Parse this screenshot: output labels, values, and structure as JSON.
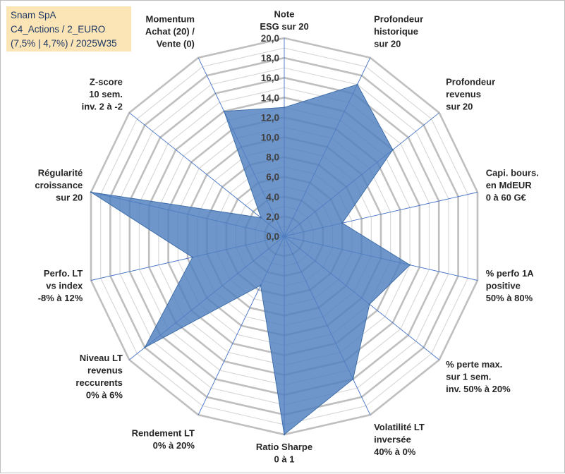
{
  "title_lines": [
    "Snam SpA",
    "C4_Actions / 2_EURO",
    "(7,5% | 4,7%) / 2025W35"
  ],
  "chart_data": {
    "type": "radar",
    "axes": [
      {
        "label": [
          "Note",
          "ESG sur 20"
        ],
        "value": 13.0
      },
      {
        "label": [
          "Profondeur",
          "historique",
          "sur 20"
        ],
        "value": 17.0
      },
      {
        "label": [
          "Profondeur",
          "revenus",
          "sur 20"
        ],
        "value": 14.0
      },
      {
        "label": [
          "Capi. bours.",
          "en MdEUR",
          "0 à 60 G€"
        ],
        "value": 6.0
      },
      {
        "label": [
          "% perfo 1A",
          "positive",
          "50% à 80%"
        ],
        "value": 13.0
      },
      {
        "label": [
          "% perte max.",
          "sur 1 sem.",
          "inv. 50% à 20%"
        ],
        "value": 11.0
      },
      {
        "label": [
          "Volatilité LT",
          "inversée",
          "40% à 0%"
        ],
        "value": 16.0
      },
      {
        "label": [
          "Ratio Sharpe",
          "0 à 1"
        ],
        "value": 20.0
      },
      {
        "label": [
          "Rendement LT",
          "0% à 20%"
        ],
        "value": 5.5
      },
      {
        "label": [
          "Niveau LT",
          "revenus",
          "reccurents",
          "0% à 6%"
        ],
        "value": 18.0
      },
      {
        "label": [
          "Perfo. LT",
          "vs index",
          "-8% à 12%"
        ],
        "value": 9.5
      },
      {
        "label": [
          "Régularité",
          "croissance",
          "sur 20"
        ],
        "value": 20.0
      },
      {
        "label": [
          "Z-score",
          "10 sem.",
          "inv. 2 à -2"
        ],
        "value": 3.0
      },
      {
        "label": [
          "Momentum",
          "Achat (20) /",
          "Vente (0)"
        ],
        "value": 14.0
      }
    ],
    "rmin": 0,
    "rmax": 20,
    "ticks": [
      "0,0",
      "2,0",
      "4,0",
      "6,0",
      "8,0",
      "10,0",
      "12,0",
      "14,0",
      "16,0",
      "18,0",
      "20,0"
    ],
    "tick_values": [
      0,
      2,
      4,
      6,
      8,
      10,
      12,
      14,
      16,
      18,
      20
    ],
    "colors": {
      "fill": "#4f7fbf",
      "stroke": "#3f6ea8",
      "grid_major": "#bfbfbf",
      "grid_minor": "#d9d9d9",
      "spoke": "#4472c4"
    }
  }
}
